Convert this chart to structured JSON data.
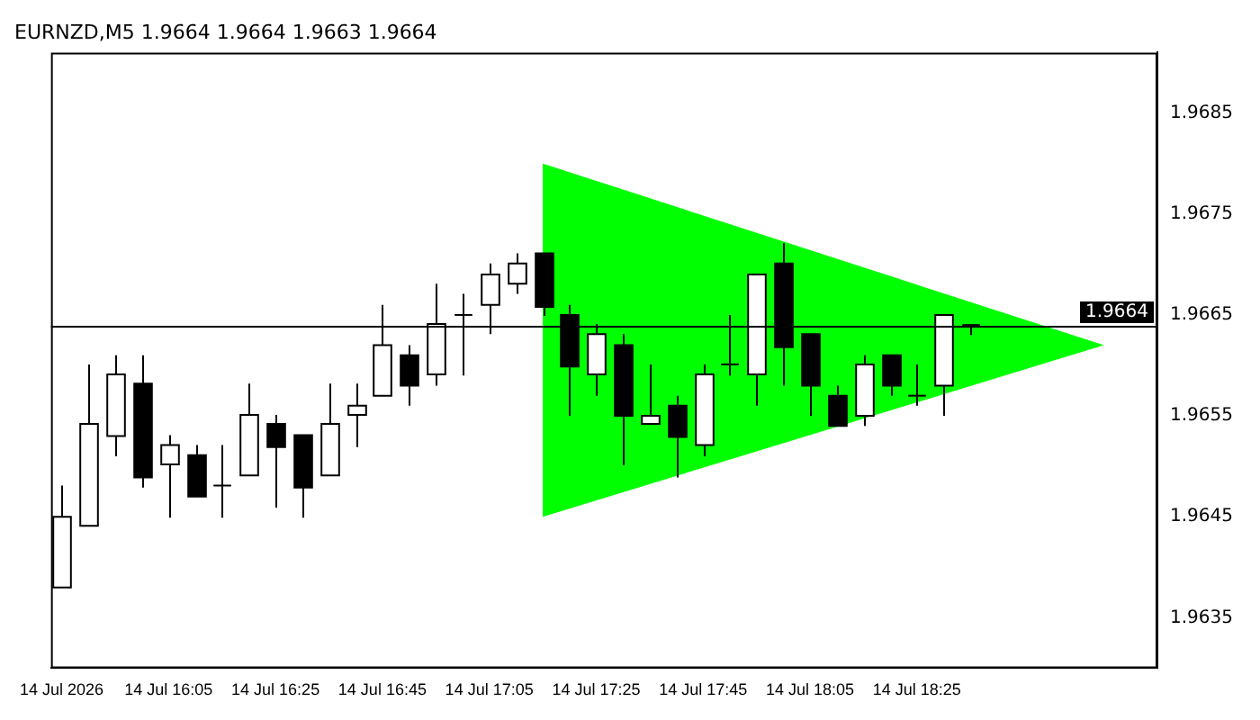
{
  "chart_data": {
    "type": "candlestick",
    "title": "EURNZD,M5 1.9664 1.9664 1.9663 1.9664",
    "x": [
      "2026-07-14T15:45",
      "2026-07-14T15:50",
      "2026-07-14T15:55",
      "2026-07-14T16:00",
      "2026-07-14T16:05",
      "2026-07-14T16:10",
      "2026-07-14T16:15",
      "2026-07-14T16:20",
      "2026-07-14T16:25",
      "2026-07-14T16:30",
      "2026-07-14T16:35",
      "2026-07-14T16:40",
      "2026-07-14T16:45",
      "2026-07-14T16:50",
      "2026-07-14T16:55",
      "2026-07-14T17:00",
      "2026-07-14T17:05",
      "2026-07-14T17:10",
      "2026-07-14T17:15",
      "2026-07-14T17:20",
      "2026-07-14T17:25",
      "2026-07-14T17:30",
      "2026-07-14T17:35",
      "2026-07-14T17:40",
      "2026-07-14T17:45",
      "2026-07-14T17:50",
      "2026-07-14T17:55",
      "2026-07-14T18:00",
      "2026-07-14T18:05",
      "2026-07-14T18:10",
      "2026-07-14T18:15",
      "2026-07-14T18:20",
      "2026-07-14T18:25",
      "2026-07-14T18:30",
      "2026-07-14T18:35"
    ],
    "ohlc": [
      [
        1.9638,
        1.96481,
        1.9638,
        1.9645
      ],
      [
        1.96441,
        1.96601,
        1.96441,
        1.96542
      ],
      [
        1.9653,
        1.9661,
        1.9651,
        1.96591
      ],
      [
        1.96582,
        1.9661,
        1.96479,
        1.96489
      ],
      [
        1.96502,
        1.96531,
        1.96449,
        1.96521
      ],
      [
        1.96511,
        1.96521,
        1.9647,
        1.9647
      ],
      [
        1.96481,
        1.96521,
        1.96449,
        1.96481
      ],
      [
        1.96491,
        1.96582,
        1.96491,
        1.96551
      ],
      [
        1.96542,
        1.96551,
        1.96459,
        1.96519
      ],
      [
        1.96531,
        1.96531,
        1.96449,
        1.96479
      ],
      [
        1.96491,
        1.96582,
        1.96491,
        1.96542
      ],
      [
        1.96551,
        1.96582,
        1.96519,
        1.9656
      ],
      [
        1.9657,
        1.9666,
        1.9657,
        1.9662
      ],
      [
        1.9661,
        1.9662,
        1.9656,
        1.9658
      ],
      [
        1.96591,
        1.96681,
        1.9658,
        1.96641
      ],
      [
        1.9665,
        1.96671,
        1.9659,
        1.9665
      ],
      [
        1.9666,
        1.96701,
        1.96631,
        1.9669
      ],
      [
        1.96681,
        1.96711,
        1.96671,
        1.96701
      ],
      [
        1.96711,
        1.96711,
        1.96649,
        1.96658
      ],
      [
        1.9665,
        1.9666,
        1.9655,
        1.96599
      ],
      [
        1.96591,
        1.96641,
        1.9657,
        1.96631
      ],
      [
        1.9662,
        1.96631,
        1.96501,
        1.9655
      ],
      [
        1.96542,
        1.96601,
        1.96542,
        1.9655
      ],
      [
        1.9656,
        1.9657,
        1.96489,
        1.96529
      ],
      [
        1.96521,
        1.96601,
        1.9651,
        1.96591
      ],
      [
        1.96601,
        1.9665,
        1.9659,
        1.96601
      ],
      [
        1.96591,
        1.9669,
        1.9656,
        1.9669
      ],
      [
        1.96701,
        1.96721,
        1.9658,
        1.96618
      ],
      [
        1.96631,
        1.96631,
        1.9655,
        1.9658
      ],
      [
        1.9657,
        1.9658,
        1.9654,
        1.9654
      ],
      [
        1.9655,
        1.9661,
        1.9654,
        1.96601
      ],
      [
        1.9661,
        1.9661,
        1.9657,
        1.9658
      ],
      [
        1.9657,
        1.96601,
        1.9656,
        1.9657
      ],
      [
        1.9658,
        1.9665,
        1.9655,
        1.9665
      ],
      [
        1.9664,
        1.9664,
        1.9663,
        1.9664
      ]
    ],
    "series": [
      {
        "type": "area",
        "color": "#00ff00",
        "x": [
          "2026-07-14T17:15",
          "2026-07-14T19:00",
          "2026-07-14T17:15"
        ],
        "values": [
          1.968,
          1.9662,
          1.9645
        ]
      }
    ],
    "xlim": [
      "2026-07-14T15:43",
      "2026-07-14T19:10"
    ],
    "xticks": [
      {
        "value": "2026-07-14T15:45",
        "label": "14 Jul 2026"
      },
      {
        "value": "2026-07-14T16:05",
        "label": "14 Jul 16:05"
      },
      {
        "value": "2026-07-14T16:25",
        "label": "14 Jul 16:25"
      },
      {
        "value": "2026-07-14T16:45",
        "label": "14 Jul 16:45"
      },
      {
        "value": "2026-07-14T17:05",
        "label": "14 Jul 17:05"
      },
      {
        "value": "2026-07-14T17:25",
        "label": "14 Jul 17:25"
      },
      {
        "value": "2026-07-14T17:45",
        "label": "14 Jul 17:45"
      },
      {
        "value": "2026-07-14T18:05",
        "label": "14 Jul 18:05"
      },
      {
        "value": "2026-07-14T18:25",
        "label": "14 Jul 18:25"
      }
    ],
    "ylim": [
      1.963,
      1.9691
    ],
    "yticks": [
      1.9635,
      1.9645,
      1.9655,
      1.9665,
      1.9675,
      1.9685
    ],
    "ref_lines": [
      {
        "axis": "y",
        "value": 1.9664,
        "label": "1.9664",
        "color": "#000000"
      }
    ],
    "grid": false,
    "legend": false
  }
}
